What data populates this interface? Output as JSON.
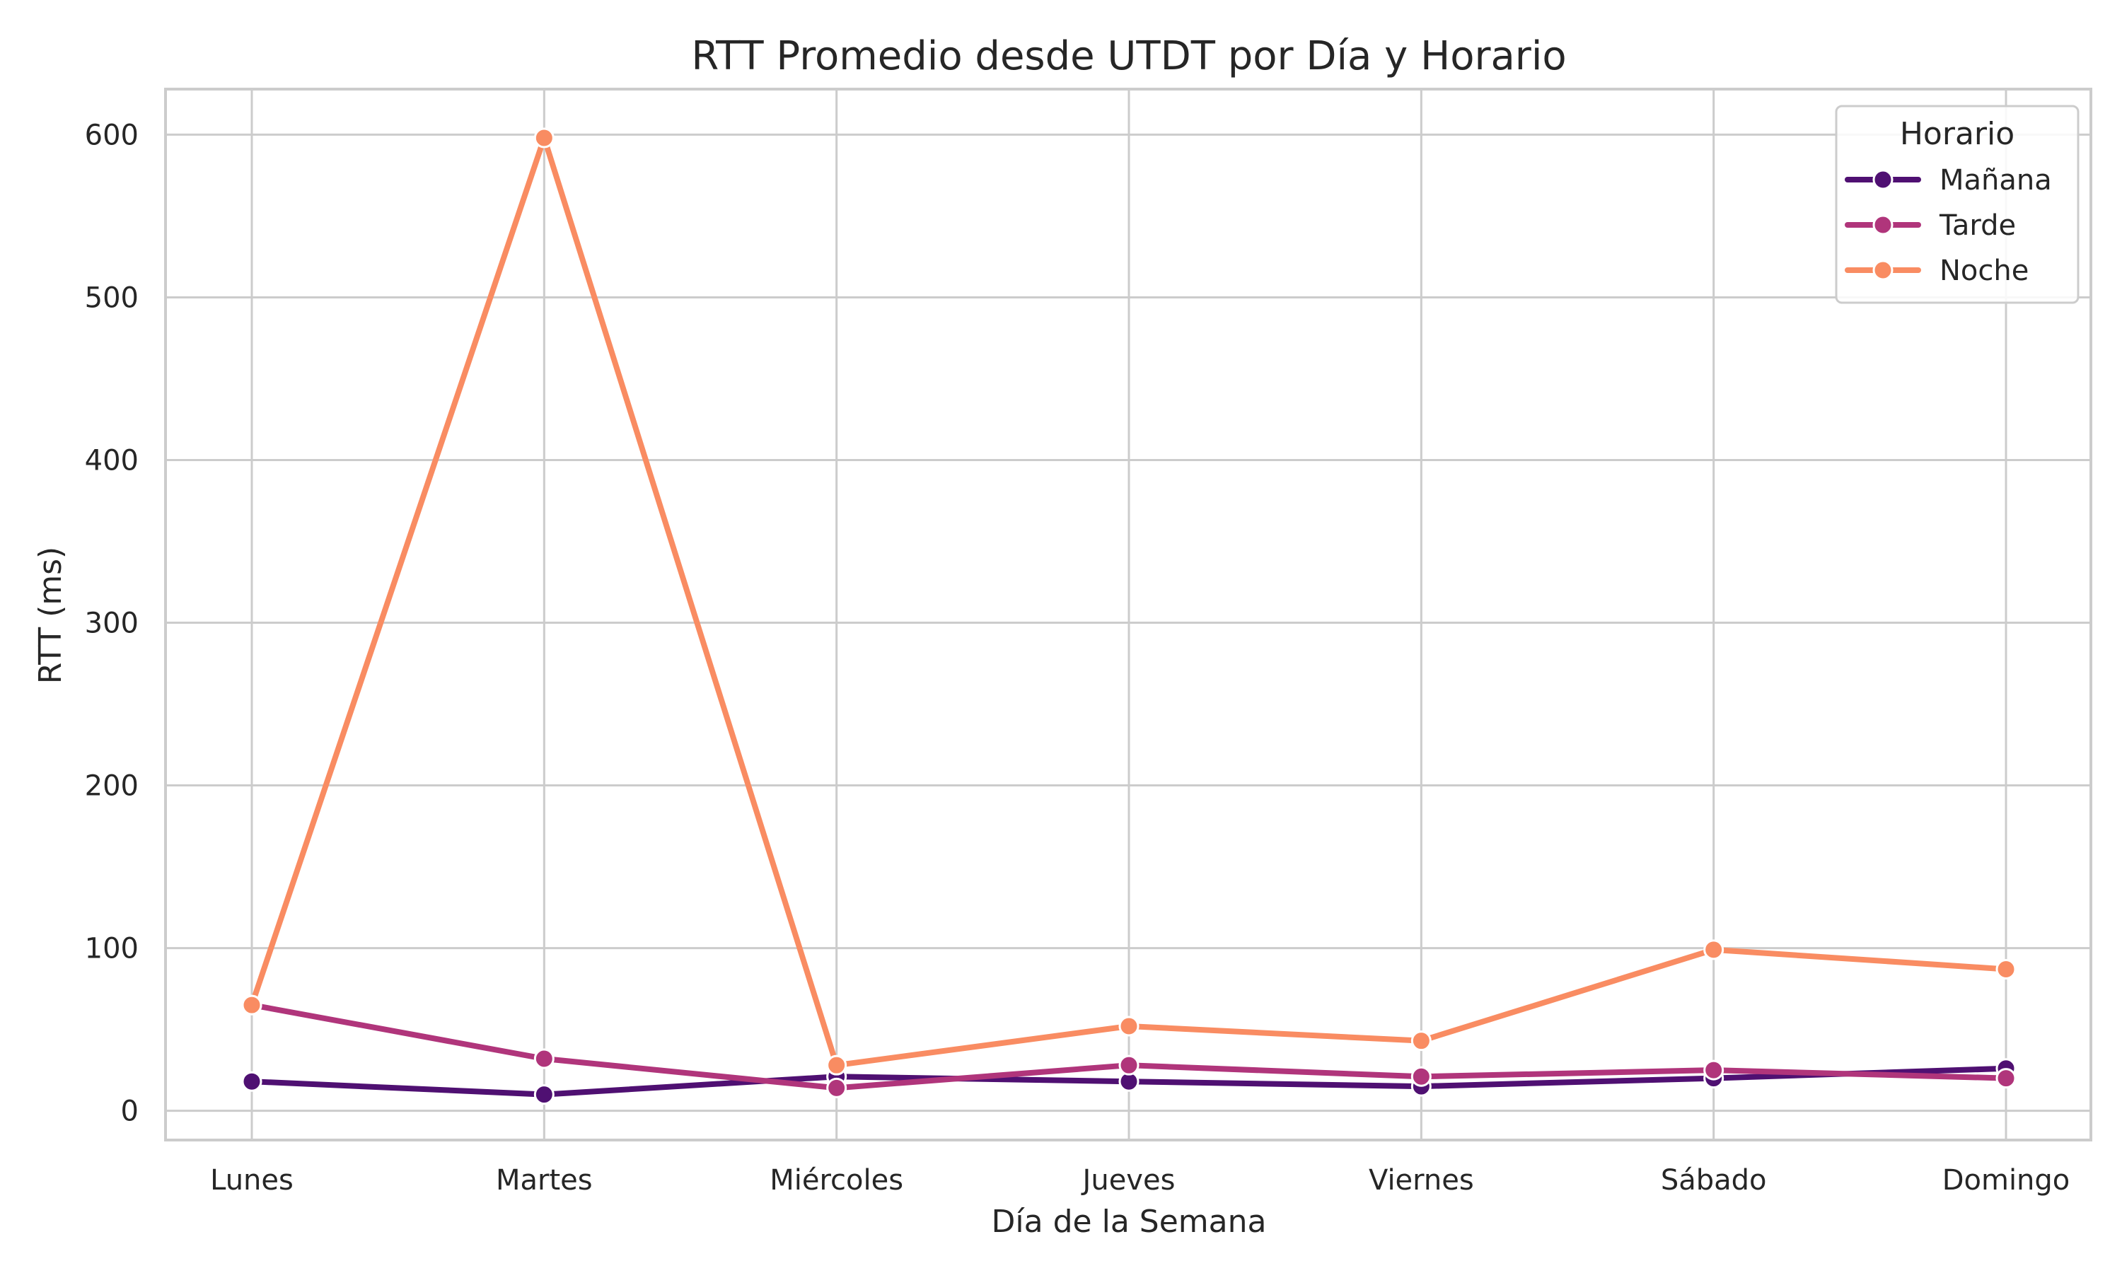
{
  "chart_data": {
    "type": "line",
    "title": "RTT Promedio desde UTDT por Día y Horario",
    "xlabel": "Día de la Semana",
    "ylabel": "RTT (ms)",
    "categories": [
      "Lunes",
      "Martes",
      "Miércoles",
      "Jueves",
      "Viernes",
      "Sábado",
      "Domingo"
    ],
    "ylim": [
      -18,
      628
    ],
    "yticks": [
      0,
      100,
      200,
      300,
      400,
      500,
      600
    ],
    "grid": true,
    "legend": {
      "title": "Horario",
      "placement": "top-right"
    },
    "series": [
      {
        "name": "Mañana",
        "color": "#4f1072",
        "values": [
          18,
          10,
          21,
          18,
          15,
          20,
          26
        ]
      },
      {
        "name": "Tarde",
        "color": "#b0357b",
        "values": [
          65,
          32,
          14,
          28,
          21,
          25,
          20
        ]
      },
      {
        "name": "Noche",
        "color": "#f98c62",
        "values": [
          65,
          598,
          28,
          52,
          43,
          99,
          87
        ]
      }
    ]
  }
}
